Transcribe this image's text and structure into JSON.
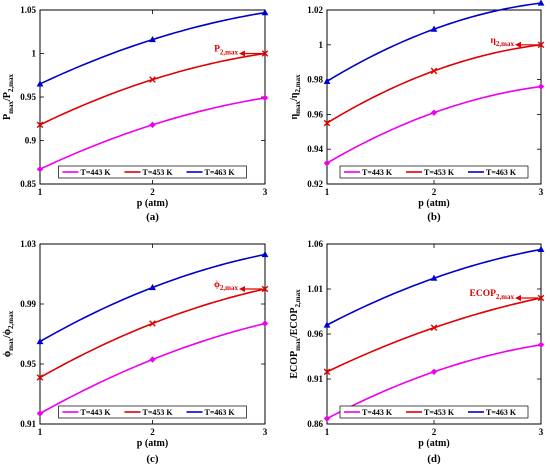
{
  "colors": {
    "magenta": "#ee00ee",
    "red": "#e00000",
    "blue": "#0000cc",
    "frame": "#000000"
  },
  "chart_data": [
    {
      "type": "line",
      "panel_label": "(a)",
      "x": [
        1,
        2,
        3
      ],
      "xlim": [
        1,
        3
      ],
      "xticks": [
        "1",
        "2",
        "3"
      ],
      "xlabel": "p (atm)",
      "ylabel_main": "P",
      "ylabel_sub": "max",
      "ylabel_sep": "/P",
      "ylabel_sub2": "2,max",
      "ylim": [
        0.85,
        1.05
      ],
      "yticks": [
        0.85,
        0.9,
        0.95,
        1,
        1.05
      ],
      "ytick_labels": [
        "0.85",
        "0.9",
        "0.95",
        "1",
        "1.05"
      ],
      "series": [
        {
          "name": "T=443 K",
          "color": "magenta",
          "marker": "diamond",
          "values": [
            0.867,
            0.918,
            0.949
          ]
        },
        {
          "name": "T=453 K",
          "color": "red",
          "marker": "x",
          "values": [
            0.918,
            0.97,
            1.0
          ]
        },
        {
          "name": "T=463 K",
          "color": "blue",
          "marker": "triangle",
          "values": [
            0.965,
            1.016,
            1.047
          ]
        }
      ],
      "annotation": {
        "main": "P",
        "sub": "2,max",
        "x": 3,
        "y": 1.0
      }
    },
    {
      "type": "line",
      "panel_label": "(b)",
      "x": [
        1,
        2,
        3
      ],
      "xlim": [
        1,
        3
      ],
      "xticks": [
        "1",
        "2",
        "3"
      ],
      "xlabel": "p (atm)",
      "ylabel_main": "η",
      "ylabel_sub": "max",
      "ylabel_sep": "/η",
      "ylabel_sub2": "2,max",
      "ylim": [
        0.92,
        1.02
      ],
      "yticks": [
        0.92,
        0.94,
        0.96,
        0.98,
        1,
        1.02
      ],
      "ytick_labels": [
        "0.92",
        "0.94",
        "0.96",
        "0.98",
        "1",
        "1.02"
      ],
      "series": [
        {
          "name": "T=443 K",
          "color": "magenta",
          "marker": "diamond",
          "values": [
            0.932,
            0.961,
            0.976
          ]
        },
        {
          "name": "T=453 K",
          "color": "red",
          "marker": "x",
          "values": [
            0.955,
            0.985,
            1.0
          ]
        },
        {
          "name": "T=463 K",
          "color": "blue",
          "marker": "triangle",
          "values": [
            0.979,
            1.009,
            1.024
          ]
        }
      ],
      "annotation": {
        "main": "η",
        "sub": "2,max",
        "x": 3,
        "y": 1.0
      }
    },
    {
      "type": "line",
      "panel_label": "(c)",
      "x": [
        1,
        2,
        3
      ],
      "xlim": [
        1,
        3
      ],
      "xticks": [
        "1",
        "2",
        "3"
      ],
      "xlabel": "p (atm)",
      "ylabel_main": "ϕ",
      "ylabel_sub": "max",
      "ylabel_sep": "/ϕ",
      "ylabel_sub2": "2,max",
      "ylim": [
        0.91,
        1.03
      ],
      "yticks": [
        0.91,
        0.95,
        0.99,
        1.03
      ],
      "ytick_labels": [
        "0.91",
        "0.95",
        "0.99",
        "1.03"
      ],
      "series": [
        {
          "name": "T=443 K",
          "color": "magenta",
          "marker": "diamond",
          "values": [
            0.917,
            0.953,
            0.977
          ]
        },
        {
          "name": "T=453 K",
          "color": "red",
          "marker": "x",
          "values": [
            0.941,
            0.977,
            1.0
          ]
        },
        {
          "name": "T=463 K",
          "color": "blue",
          "marker": "triangle",
          "values": [
            0.965,
            1.001,
            1.023
          ]
        }
      ],
      "annotation": {
        "main": "ϕ",
        "sub": "2,max",
        "x": 3,
        "y": 1.0
      }
    },
    {
      "type": "line",
      "panel_label": "(d)",
      "x": [
        1,
        2,
        3
      ],
      "xlim": [
        1,
        3
      ],
      "xticks": [
        "1",
        "2",
        "3"
      ],
      "xlabel": "p (atm)",
      "ylabel_main": "ECOP",
      "ylabel_sub": "max",
      "ylabel_sep": "/ECOP",
      "ylabel_sub2": "2,max",
      "ylim": [
        0.86,
        1.06
      ],
      "yticks": [
        0.86,
        0.91,
        0.96,
        1.01,
        1.06
      ],
      "ytick_labels": [
        "0.86",
        "0.91",
        "0.96",
        "1.01",
        "1.06"
      ],
      "series": [
        {
          "name": "T=443 K",
          "color": "magenta",
          "marker": "diamond",
          "values": [
            0.866,
            0.918,
            0.948
          ]
        },
        {
          "name": "T=453 K",
          "color": "red",
          "marker": "x",
          "values": [
            0.918,
            0.967,
            1.0
          ]
        },
        {
          "name": "T=463 K",
          "color": "blue",
          "marker": "triangle",
          "values": [
            0.97,
            1.022,
            1.054
          ]
        }
      ],
      "annotation": {
        "main": "ECOP",
        "sub": "2,max",
        "x": 3,
        "y": 1.0
      }
    }
  ]
}
